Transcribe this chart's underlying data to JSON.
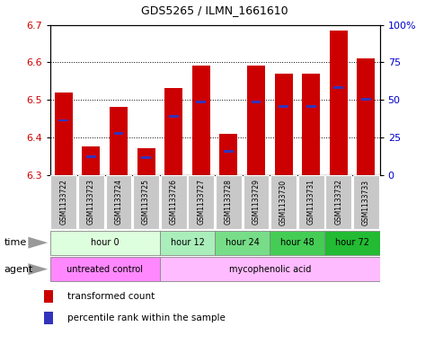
{
  "title": "GDS5265 / ILMN_1661610",
  "samples": [
    "GSM1133722",
    "GSM1133723",
    "GSM1133724",
    "GSM1133725",
    "GSM1133726",
    "GSM1133727",
    "GSM1133728",
    "GSM1133729",
    "GSM1133730",
    "GSM1133731",
    "GSM1133732",
    "GSM1133733"
  ],
  "bar_bottoms": [
    6.3,
    6.3,
    6.3,
    6.3,
    6.3,
    6.3,
    6.3,
    6.3,
    6.3,
    6.3,
    6.3,
    6.3
  ],
  "bar_tops": [
    6.52,
    6.375,
    6.48,
    6.37,
    6.53,
    6.59,
    6.41,
    6.59,
    6.57,
    6.57,
    6.685,
    6.61
  ],
  "blue_values": [
    6.445,
    6.348,
    6.41,
    6.345,
    6.455,
    6.493,
    6.362,
    6.493,
    6.482,
    6.482,
    6.532,
    6.502
  ],
  "ylim_left": [
    6.3,
    6.7
  ],
  "ylim_right": [
    0,
    100
  ],
  "yticks_left": [
    6.3,
    6.4,
    6.5,
    6.6,
    6.7
  ],
  "yticks_right": [
    0,
    25,
    50,
    75,
    100
  ],
  "ytick_labels_right": [
    "0",
    "25",
    "50",
    "75",
    "100%"
  ],
  "bar_color": "#cc0000",
  "blue_color": "#3333bb",
  "time_groups": [
    {
      "label": "hour 0",
      "start": 0,
      "end": 3,
      "color": "#ddffdd"
    },
    {
      "label": "hour 12",
      "start": 4,
      "end": 5,
      "color": "#aaeebb"
    },
    {
      "label": "hour 24",
      "start": 6,
      "end": 7,
      "color": "#77dd88"
    },
    {
      "label": "hour 48",
      "start": 8,
      "end": 9,
      "color": "#44cc55"
    },
    {
      "label": "hour 72",
      "start": 10,
      "end": 11,
      "color": "#22bb33"
    }
  ],
  "agent_groups": [
    {
      "label": "untreated control",
      "start": 0,
      "end": 3,
      "color": "#ff88ff"
    },
    {
      "label": "mycophenolic acid",
      "start": 4,
      "end": 11,
      "color": "#ffbbff"
    }
  ],
  "sample_bg_color": "#c8c8c8",
  "legend_red_label": "transformed count",
  "legend_blue_label": "percentile rank within the sample",
  "time_label": "time",
  "agent_label": "agent"
}
